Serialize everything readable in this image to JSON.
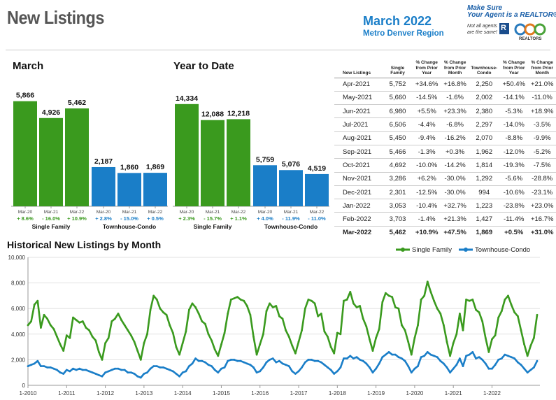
{
  "header": {
    "title": "New Listings",
    "month": "March 2022",
    "region": "Metro Denver Region",
    "logo": {
      "line1": "Make Sure",
      "line2": "Your Agent is a REALTOR®",
      "line3a": "Not all agents",
      "line3b": "are the same!",
      "mark": "R",
      "realtors": "REALTORS"
    }
  },
  "colors": {
    "single_family": "#3a9a1e",
    "townhouse": "#1a7ec8",
    "title_blue": "#1a7ec8"
  },
  "chart_data": [
    {
      "type": "bar",
      "title": "March",
      "groups": [
        {
          "name": "Single Family",
          "categories": [
            "Mar-20",
            "Mar-21",
            "Mar-22"
          ],
          "values": [
            5866,
            4926,
            5462
          ],
          "labels": [
            "5,866",
            "4,926",
            "5,462"
          ],
          "changes": [
            "+ 8.6%",
            "- 16.0%",
            "+ 10.9%"
          ]
        },
        {
          "name": "Townhouse-Condo",
          "categories": [
            "Mar-20",
            "Mar-21",
            "Mar-22"
          ],
          "values": [
            2187,
            1860,
            1869
          ],
          "labels": [
            "2,187",
            "1,860",
            "1,869"
          ],
          "changes": [
            "+ 2.8%",
            "- 15.0%",
            "+ 0.5%"
          ]
        }
      ]
    },
    {
      "type": "bar",
      "title": "Year to Date",
      "groups": [
        {
          "name": "Single Family",
          "categories": [
            "Mar-20",
            "Mar-21",
            "Mar-22"
          ],
          "values": [
            14334,
            12088,
            12218
          ],
          "labels": [
            "14,334",
            "12,088",
            "12,218"
          ],
          "changes": [
            "+ 2.3%",
            "- 15.7%",
            "+ 1.1%"
          ]
        },
        {
          "name": "Townhouse-Condo",
          "categories": [
            "Mar-20",
            "Mar-21",
            "Mar-22"
          ],
          "values": [
            5759,
            5076,
            4519
          ],
          "labels": [
            "5,759",
            "5,076",
            "4,519"
          ],
          "changes": [
            "+ 4.0%",
            "- 11.9%",
            "- 11.0%"
          ]
        }
      ]
    },
    {
      "type": "table",
      "headers": [
        "New Listings",
        "Single Family",
        "% Change from Prior Year",
        "% Change from Prior Month",
        "Townhouse-Condo",
        "% Change from Prior Year",
        "% Change from Prior Month"
      ],
      "rows": [
        [
          "Apr-2021",
          "5,752",
          "+34.6%",
          "+16.8%",
          "2,250",
          "+50.4%",
          "+21.0%"
        ],
        [
          "May-2021",
          "5,660",
          "-14.5%",
          "-1.6%",
          "2,002",
          "-14.1%",
          "-11.0%"
        ],
        [
          "Jun-2021",
          "6,980",
          "+5.5%",
          "+23.3%",
          "2,380",
          "-5.3%",
          "+18.9%"
        ],
        [
          "Jul-2021",
          "6,506",
          "-4.4%",
          "-6.8%",
          "2,297",
          "-14.0%",
          "-3.5%"
        ],
        [
          "Aug-2021",
          "5,450",
          "-9.4%",
          "-16.2%",
          "2,070",
          "-8.8%",
          "-9.9%"
        ],
        [
          "Sep-2021",
          "5,466",
          "-1.3%",
          "+0.3%",
          "1,962",
          "-12.0%",
          "-5.2%"
        ],
        [
          "Oct-2021",
          "4,692",
          "-10.0%",
          "-14.2%",
          "1,814",
          "-19.3%",
          "-7.5%"
        ],
        [
          "Nov-2021",
          "3,286",
          "+6.2%",
          "-30.0%",
          "1,292",
          "-5.6%",
          "-28.8%"
        ],
        [
          "Dec-2021",
          "2,301",
          "-12.5%",
          "-30.0%",
          "994",
          "-10.6%",
          "-23.1%"
        ],
        [
          "Jan-2022",
          "3,053",
          "-10.4%",
          "+32.7%",
          "1,223",
          "-23.8%",
          "+23.0%"
        ],
        [
          "Feb-2022",
          "3,703",
          "-1.4%",
          "+21.3%",
          "1,427",
          "-11.4%",
          "+16.7%"
        ],
        [
          "Mar-2022",
          "5,462",
          "+10.9%",
          "+47.5%",
          "1,869",
          "+0.5%",
          "+31.0%"
        ]
      ]
    },
    {
      "type": "line",
      "title": "Historical New Listings by Month",
      "ylim": [
        0,
        10000
      ],
      "yticks": [
        0,
        2000,
        4000,
        6000,
        8000,
        10000
      ],
      "ytick_labels": [
        "0",
        "2,000",
        "4,000",
        "6,000",
        "8,000",
        "10,000"
      ],
      "xtick_labels": [
        "1-2010",
        "1-2011",
        "1-2012",
        "1-2013",
        "1-2014",
        "1-2015",
        "1-2016",
        "1-2017",
        "1-2018",
        "1-2019",
        "1-2020",
        "1-2021",
        "1-2022"
      ],
      "legend_position": "top-right",
      "series": [
        {
          "name": "Single Family",
          "values": [
            4700,
            5000,
            6300,
            6600,
            4500,
            5500,
            5200,
            4700,
            4400,
            3800,
            3200,
            2700,
            3900,
            3700,
            5300,
            5100,
            4900,
            5000,
            4500,
            4300,
            3800,
            3500,
            2600,
            2000,
            3300,
            3700,
            5000,
            5200,
            5600,
            5100,
            4700,
            4300,
            3900,
            3400,
            2700,
            2000,
            3300,
            4000,
            5900,
            7000,
            6700,
            6000,
            5700,
            5500,
            4700,
            4100,
            3000,
            2400,
            3300,
            4200,
            5900,
            6400,
            6100,
            5600,
            5000,
            4800,
            4000,
            3500,
            2800,
            2300,
            3200,
            4100,
            5600,
            6700,
            6800,
            6900,
            6700,
            6600,
            6200,
            5500,
            3800,
            2400,
            3200,
            4000,
            5800,
            6400,
            6100,
            6200,
            5400,
            5200,
            4300,
            3800,
            3100,
            2500,
            3400,
            4300,
            6000,
            6700,
            6600,
            6400,
            5400,
            5600,
            4200,
            3800,
            3000,
            2500,
            4100,
            4000,
            6600,
            6700,
            7300,
            6400,
            6100,
            6200,
            5200,
            4600,
            3600,
            2700,
            3700,
            4400,
            6500,
            7200,
            7000,
            6900,
            6100,
            6000,
            4700,
            4300,
            3400,
            2400,
            3700,
            4700,
            6700,
            7000,
            8100,
            7300,
            6600,
            6000,
            5600,
            4700,
            3400,
            2300,
            3300,
            4000,
            5600,
            4300,
            6700,
            6600,
            6700,
            5900,
            5700,
            5000,
            3700,
            2600,
            3600,
            3900,
            5300,
            5800,
            6700,
            7000,
            6300,
            5700,
            5400,
            4300,
            3200,
            2300,
            3100,
            3700,
            5500
          ]
        },
        {
          "name": "Townhouse-Condo",
          "values": [
            1500,
            1600,
            1700,
            1900,
            1500,
            1500,
            1400,
            1400,
            1300,
            1200,
            1000,
            900,
            1200,
            1100,
            1300,
            1200,
            1300,
            1200,
            1200,
            1100,
            1000,
            900,
            800,
            700,
            1000,
            1100,
            1200,
            1300,
            1300,
            1200,
            1200,
            1000,
            1000,
            900,
            700,
            600,
            900,
            1000,
            1300,
            1500,
            1500,
            1400,
            1400,
            1300,
            1200,
            1100,
            900,
            700,
            1000,
            1100,
            1500,
            1700,
            2100,
            1900,
            1900,
            1800,
            1600,
            1500,
            1200,
            1000,
            1300,
            1400,
            1900,
            2000,
            2000,
            1900,
            1900,
            1800,
            1700,
            1600,
            1400,
            1000,
            1100,
            1400,
            1800,
            2000,
            2100,
            1800,
            1900,
            1700,
            1600,
            1500,
            1100,
            900,
            1100,
            1400,
            1800,
            2000,
            2000,
            1900,
            1900,
            1800,
            1600,
            1400,
            1200,
            900,
            1100,
            1400,
            2100,
            2100,
            2300,
            2100,
            2200,
            2000,
            1900,
            1700,
            1400,
            1000,
            1300,
            1700,
            2200,
            2400,
            2600,
            2400,
            2400,
            2200,
            2100,
            1900,
            1500,
            1000,
            1300,
            1500,
            2200,
            2300,
            2600,
            2400,
            2300,
            2200,
            1900,
            1700,
            1400,
            1000,
            1300,
            1600,
            2100,
            1500,
            2300,
            2400,
            2600,
            2100,
            2200,
            2000,
            1700,
            1300,
            1300,
            1600,
            2000,
            2100,
            2400,
            2300,
            2200,
            2100,
            1800,
            1600,
            1300,
            1000,
            1200,
            1400,
            1900
          ]
        }
      ]
    }
  ]
}
